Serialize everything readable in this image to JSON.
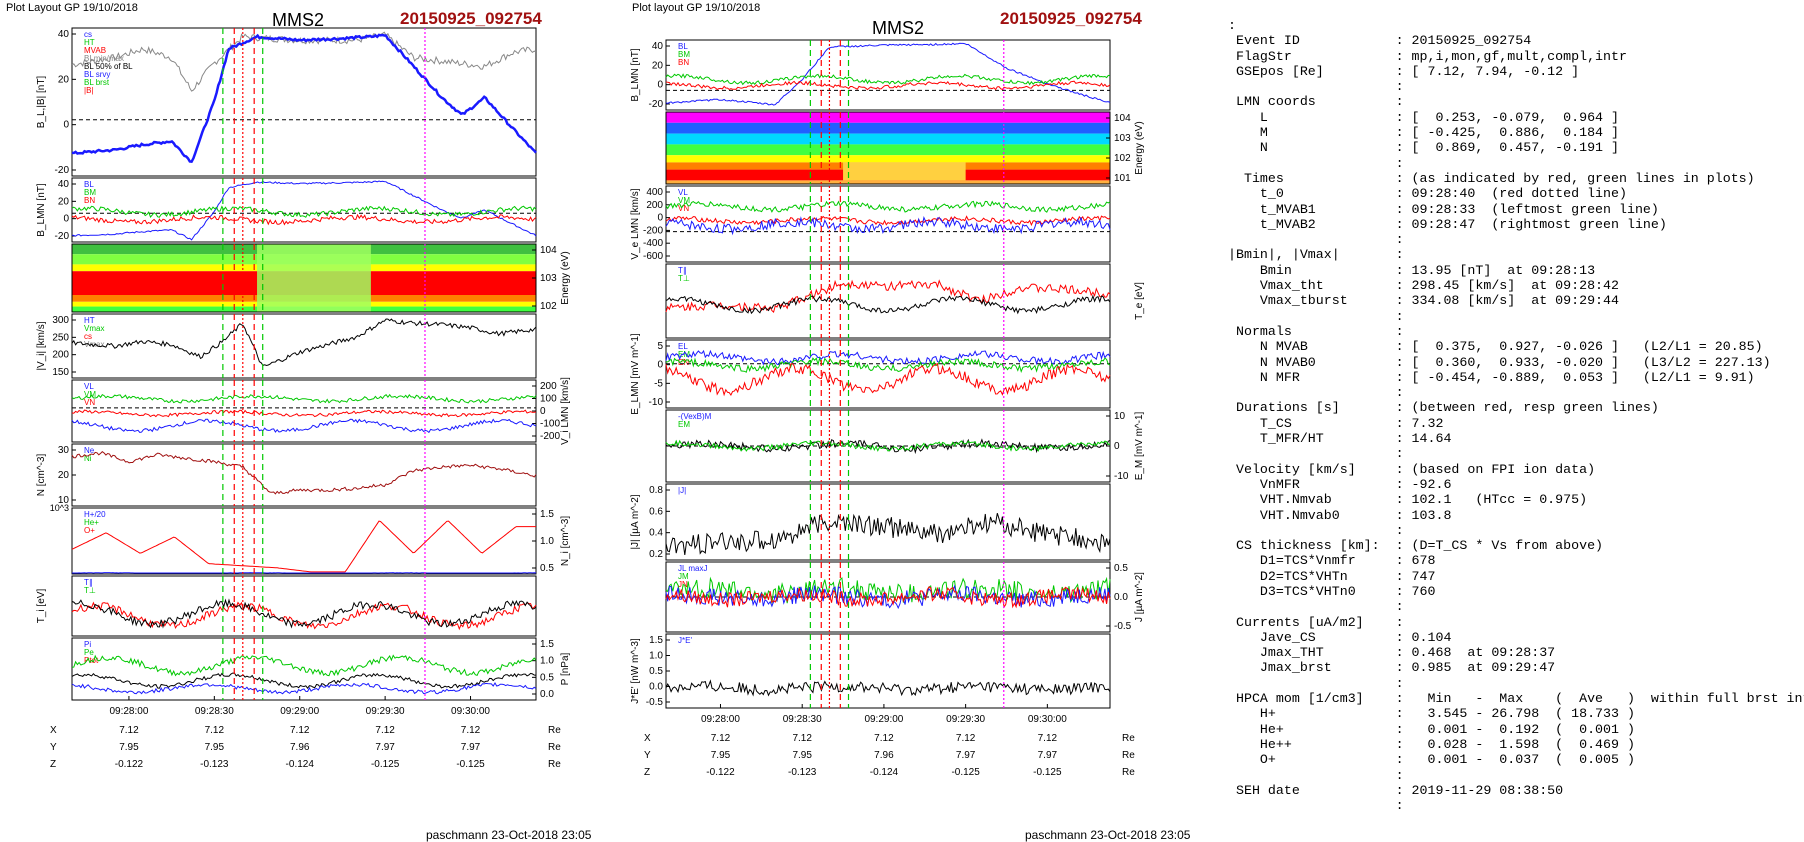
{
  "colors": {
    "event": "#a01010",
    "blue": "#1a1aff",
    "green": "#00c800",
    "red": "#ff0000",
    "magenta": "#ff00ff",
    "gray": "#888888"
  },
  "left": {
    "header": "Plot Layout GP 19/10/2018",
    "spacecraft": "MMS2",
    "event": "20150925_092754",
    "panels": [
      {
        "ylabel": "B_L,|B| [nT]",
        "yticks": [
          "40",
          "20",
          "0",
          "-20"
        ],
        "legend": [
          "cs",
          "HT",
          "MVAB",
          "BLmin/max",
          "BL 50% of BL",
          "BL srvy",
          "BL brst",
          "|B|"
        ]
      },
      {
        "ylabel": "B_LMN [nT]",
        "yticks": [
          "40",
          "20",
          "0",
          "-20"
        ],
        "legend": [
          "BL",
          "BM",
          "BN"
        ]
      },
      {
        "ylabel": "Energy (eV)",
        "yticks": [
          "10^4",
          "10^3",
          "10^2"
        ]
      },
      {
        "ylabel": "|V_i| [km/s]",
        "yticks": [
          "300",
          "250",
          "200",
          "150"
        ],
        "legend": [
          "HT",
          "Vmax",
          "cs",
          "Vmax"
        ]
      },
      {
        "ylabel": "V_i LMN [km/s]",
        "yticks": [
          "200",
          "100",
          "0",
          "-100",
          "-200"
        ],
        "legend": [
          "VL",
          "VM",
          "VN"
        ]
      },
      {
        "ylabel": "N [cm^-3]",
        "yticks": [
          "30",
          "20",
          "10"
        ],
        "legend": [
          "Ne",
          "Ni"
        ]
      },
      {
        "ylabel": "N_i [cm^-3]",
        "yticks": [
          "1.5",
          "1.0",
          "0.5"
        ],
        "legend": [
          "H+/20",
          "He+",
          "O+"
        ],
        "marker": "10^3"
      },
      {
        "ylabel": "T_i [eV]",
        "legend": [
          "T∥",
          "T⊥"
        ]
      },
      {
        "ylabel": "P [nPa]",
        "yticks": [
          "1.5",
          "1.0",
          "0.5",
          "0.0"
        ],
        "legend": [
          "Pi",
          "Pe",
          "Ptot"
        ]
      }
    ],
    "xticks": [
      "09:28:00",
      "09:28:30",
      "09:29:00",
      "09:29:30",
      "09:30:00"
    ],
    "pos": {
      "rows": [
        "X",
        "Y",
        "Z"
      ],
      "values": [
        [
          "7.12",
          "7.12",
          "7.12",
          "7.12",
          "7.12"
        ],
        [
          "7.95",
          "7.95",
          "7.96",
          "7.97",
          "7.97"
        ],
        [
          "-0.122",
          "-0.123",
          "-0.124",
          "-0.125",
          "-0.125"
        ]
      ],
      "unit": "Re"
    },
    "footer": "paschmann 23-Oct-2018 23:05"
  },
  "middle": {
    "header": "Plot layout GP 19/10/2018",
    "spacecraft": "MMS2",
    "event": "20150925_092754",
    "panels": [
      {
        "ylabel": "B_LMN [nT]",
        "yticks": [
          "40",
          "20",
          "0",
          "-20"
        ],
        "legend": [
          "BL",
          "BM",
          "BN"
        ]
      },
      {
        "ylabel": "Energy (eV)",
        "yticks": [
          "10^4",
          "10^3",
          "10^2",
          "10^1"
        ]
      },
      {
        "ylabel": "V_e LMN [km/s]",
        "yticks": [
          "400",
          "200",
          "0",
          "-200",
          "-400",
          "-600"
        ],
        "legend": [
          "VL",
          "VM",
          "VN"
        ]
      },
      {
        "ylabel": "T_e [eV]",
        "legend": [
          "T∥",
          "T⊥"
        ]
      },
      {
        "ylabel": "E_LMN [mV m^-1]",
        "yticks": [
          "5",
          "0",
          "-5",
          "-10"
        ],
        "legend": [
          "EL",
          "EM",
          "EN"
        ]
      },
      {
        "ylabel": "E_M [mV m^-1]",
        "yticks": [
          "10",
          "0",
          "-10"
        ],
        "legend": [
          "-(VexB)M",
          "EM"
        ]
      },
      {
        "ylabel": "|J| [µA m^-2]",
        "yticks": [
          "0.8",
          "0.6",
          "0.4",
          "0.2"
        ],
        "legend": [
          "|J|"
        ]
      },
      {
        "ylabel": "J [µA m^-2]",
        "yticks": [
          "0.5",
          "0.0",
          "-0.5"
        ],
        "legend": [
          "JL maxJ",
          "JM",
          "JN"
        ]
      },
      {
        "ylabel": "J*E' [nW m^-3]",
        "yticks": [
          "1.5",
          "1.0",
          "0.5",
          "0.0",
          "-0.5"
        ],
        "legend": [
          "J*E'"
        ]
      }
    ],
    "xticks": [
      "09:28:00",
      "09:28:30",
      "09:29:00",
      "09:29:30",
      "09:30:00"
    ],
    "pos": {
      "rows": [
        "X",
        "Y",
        "Z"
      ],
      "values": [
        [
          "7.12",
          "7.12",
          "7.12",
          "7.12",
          "7.12"
        ],
        [
          "7.95",
          "7.95",
          "7.96",
          "7.97",
          "7.97"
        ],
        [
          "-0.122",
          "-0.123",
          "-0.124",
          "-0.125",
          "-0.125"
        ]
      ],
      "unit": "Re"
    },
    "footer": "paschmann 23-Oct-2018 23:05"
  },
  "info_lines": [
    ":",
    " Event ID            : 20150925_092754",
    " FlagStr             : mp,i,mon,gf,mult,compl,intr",
    " GSEpos [Re]         : [ 7.12, 7.94, -0.12 ]",
    "                     :",
    " LMN coords          :",
    "    L                : [  0.253, -0.079,  0.964 ]",
    "    M                : [ -0.425,  0.886,  0.184 ]",
    "    N                : [  0.869,  0.457, -0.191 ]",
    "                     :",
    "  Times              : (as indicated by red, green lines in plots)",
    "    t_0              : 09:28:40  (red dotted line)",
    "    t_MVAB1          : 09:28:33  (leftmost green line)",
    "    t_MVAB2          : 09:28:47  (rightmost green line)",
    "                     :",
    "|Bmin|, |Vmax|       :",
    "    Bmin             : 13.95 [nT]  at 09:28:13",
    "    Vmax_tht         : 298.45 [km/s]  at 09:28:42",
    "    Vmax_tburst      : 334.08 [km/s]  at 09:29:44",
    "                     :",
    " Normals             :",
    "    N MVAB           : [  0.375,  0.927, -0.026 ]   (L2/L1 = 20.85)",
    "    N MVAB0          : [  0.360,  0.933, -0.020 ]   (L3/L2 = 227.13)",
    "    N MFR            : [ -0.454, -0.889,  0.053 ]   (L2/L1 = 9.91)",
    "                     :",
    " Durations [s]       : (between red, resp green lines)",
    "    T_CS             : 7.32",
    "    T_MFR/HT         : 14.64",
    "                     :",
    " Velocity [km/s]     : (based on FPI ion data)",
    "    VnMFR            : -92.6",
    "    VHT.Nmvab        : 102.1   (HTcc = 0.975)",
    "    VHT.Nmvab0       : 103.8",
    "                     :",
    " CS thickness [km]:  : (D=T_CS * Vs from above)",
    "    D1=TCS*Vnmfr     : 678",
    "    D2=TCS*VHTn      : 747",
    "    D3=TCS*VHTn0     : 760",
    "                     :",
    " Currents [uA/m2]    :",
    "    Jave_CS          : 0.104",
    "    Jmax_THT         : 0.468  at 09:28:37",
    "    Jmax_brst        : 0.985  at 09:29:47",
    "                     :",
    " HPCA mom [1/cm3]    :   Min   -  Max    (  Ave   )  within full brst int",
    "    H+               :   3.545 - 26.798  ( 18.733 )",
    "    He+              :   0.001 -  0.192  (  0.001 )",
    "    He++             :   0.028 -  1.598  (  0.469 )",
    "    O+               :   0.001 -  0.037  (  0.005 )",
    "                     :",
    " SEH date            : 2019-11-29 08:38:50",
    "                     :"
  ],
  "chart_data": [
    {
      "type": "line",
      "title": "MMS2 20150925_092754",
      "xlabel": "",
      "x_range": [
        "09:27:40",
        "09:30:23"
      ],
      "series": [
        {
          "name": "BL brst",
          "panel": 0,
          "x": [
            "09:27:40",
            "09:27:55",
            "09:28:05",
            "09:28:15",
            "09:28:22",
            "09:28:30",
            "09:28:35",
            "09:28:45",
            "09:29:00",
            "09:29:15",
            "09:29:25",
            "09:29:30",
            "09:29:40",
            "09:29:50",
            "09:29:57",
            "09:30:05",
            "09:30:15",
            "09:30:23"
          ],
          "values": [
            -22,
            -20,
            -17,
            -15,
            -27,
            8,
            38,
            45,
            43,
            44,
            45,
            46,
            28,
            10,
            0,
            10,
            -8,
            -22
          ]
        },
        {
          "name": "|B|",
          "panel": 0,
          "x": [
            "09:27:40",
            "09:27:55",
            "09:28:05",
            "09:28:15",
            "09:28:22",
            "09:28:30",
            "09:28:40",
            "09:29:00",
            "09:29:20",
            "09:29:30",
            "09:29:40",
            "09:29:55",
            "09:30:05",
            "09:30:15",
            "09:30:23"
          ],
          "values": [
            29,
            33,
            38,
            33,
            14,
            30,
            45,
            43,
            43,
            46,
            33,
            30,
            28,
            36,
            38
          ]
        },
        {
          "name": "|Vi|",
          "panel": 3,
          "x": [
            "09:27:40",
            "09:27:55",
            "09:28:05",
            "09:28:15",
            "09:28:25",
            "09:28:33",
            "09:28:40",
            "09:28:47",
            "09:29:00",
            "09:29:20",
            "09:29:30",
            "09:29:40",
            "09:29:50",
            "09:30:00",
            "09:30:10",
            "09:30:23"
          ],
          "values": [
            235,
            225,
            240,
            230,
            190,
            240,
            300,
            155,
            205,
            255,
            310,
            300,
            295,
            285,
            265,
            280
          ]
        },
        {
          "name": "Ne",
          "panel": 5,
          "x": [
            "09:27:40",
            "09:27:50",
            "09:28:00",
            "09:28:10",
            "09:28:20",
            "09:28:30",
            "09:28:40",
            "09:28:50",
            "09:29:00",
            "09:29:10",
            "09:29:20",
            "09:29:30",
            "09:29:40",
            "09:29:50",
            "09:30:00",
            "09:30:10",
            "09:30:23"
          ],
          "values": [
            28,
            30,
            25,
            29,
            27,
            25,
            22,
            7,
            9,
            9,
            10,
            12,
            20,
            22,
            23,
            21,
            17
          ]
        },
        {
          "name": "He+",
          "panel": 6,
          "x": [
            "09:27:40",
            "09:27:52",
            "09:28:04",
            "09:28:16",
            "09:28:28",
            "09:28:40",
            "09:28:52",
            "09:29:04",
            "09:29:16",
            "09:29:28",
            "09:29:40",
            "09:29:52",
            "09:30:04",
            "09:30:16"
          ],
          "values": [
            0.6,
            1.0,
            0.5,
            0.9,
            0.25,
            0.2,
            0.15,
            0.05,
            0.05,
            1.3,
            0.5,
            1.3,
            0.5,
            1.15
          ]
        }
      ]
    },
    {
      "type": "line",
      "title": "MMS2 20150925_092754",
      "xlabel": "",
      "x_range": [
        "09:27:40",
        "09:30:23"
      ],
      "series": [
        {
          "name": "BL",
          "panel": 0,
          "x": [
            "09:27:40",
            "09:28:00",
            "09:28:20",
            "09:28:30",
            "09:28:40",
            "09:29:00",
            "09:29:20",
            "09:29:30",
            "09:29:45",
            "09:30:00",
            "09:30:10",
            "09:30:23"
          ],
          "values": [
            -22,
            -18,
            -24,
            5,
            42,
            44,
            45,
            46,
            18,
            0,
            -10,
            -22
          ]
        },
        {
          "name": "Te par",
          "panel": 3,
          "x": [
            "09:27:40",
            "09:28:00",
            "09:28:20",
            "09:28:35",
            "09:28:45",
            "09:29:00",
            "09:29:20",
            "09:29:35",
            "09:29:50",
            "09:30:05",
            "09:30:23"
          ],
          "values": [
            40,
            45,
            40,
            60,
            75,
            70,
            72,
            50,
            68,
            66,
            60
          ]
        },
        {
          "name": "|J|",
          "panel": 6,
          "x": [
            "09:27:40",
            "09:28:00",
            "09:28:20",
            "09:28:40",
            "09:29:00",
            "09:29:20",
            "09:29:40",
            "09:30:00",
            "09:30:23"
          ],
          "values": [
            0.15,
            0.2,
            0.25,
            0.45,
            0.4,
            0.3,
            0.45,
            0.3,
            0.2
          ]
        }
      ]
    }
  ]
}
